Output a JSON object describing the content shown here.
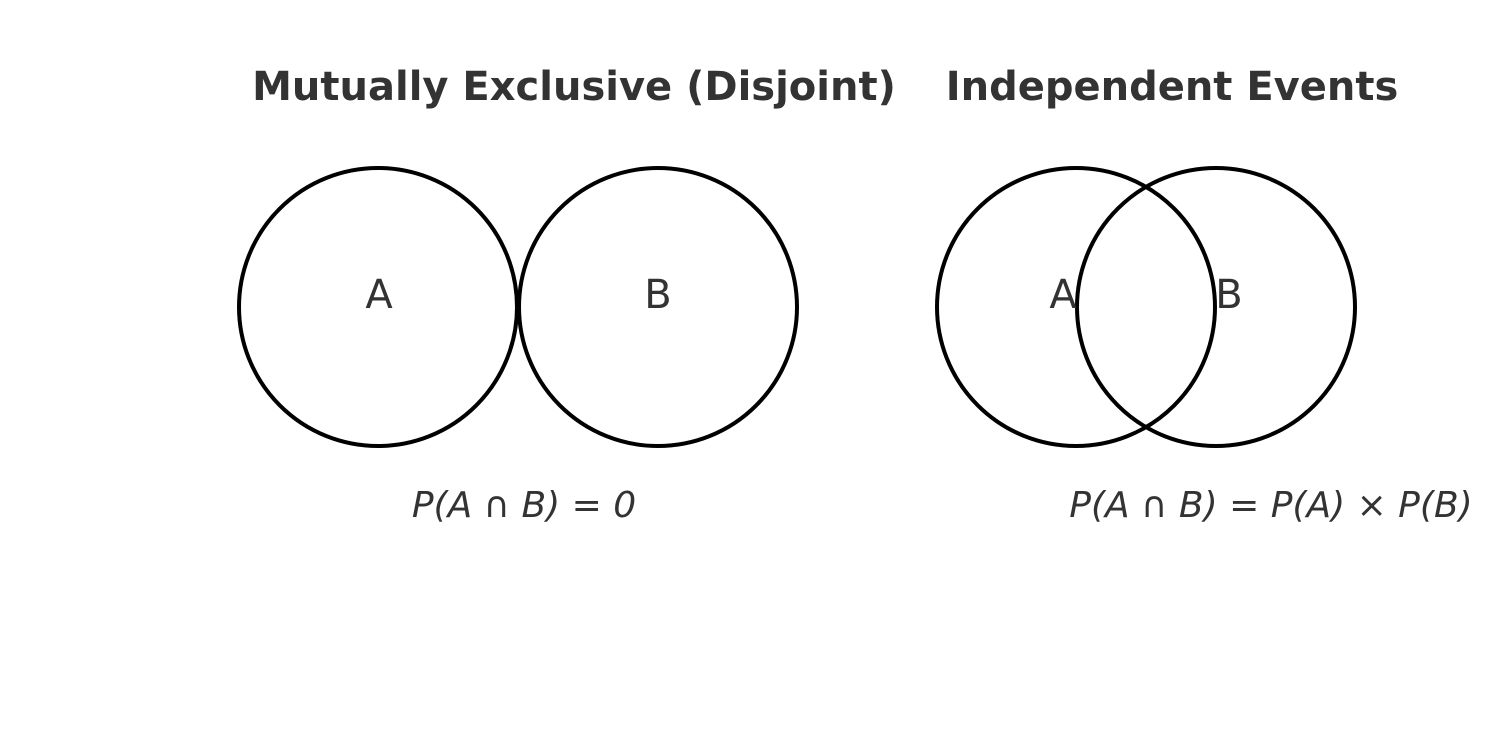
{
  "panels": {
    "disjoint": {
      "title": "Mutually Exclusive (Disjoint)",
      "label_a": "A",
      "label_b": "B",
      "formula": "P(A ∩ B) = 0"
    },
    "independent": {
      "title": "Independent Events",
      "label_a": "A",
      "label_b": "B",
      "formula": "P(A ∩ B) = P(A) × P(B)"
    }
  },
  "colors": {
    "text": "#333333",
    "circle_stroke": "#000000",
    "background": "#ffffff"
  }
}
